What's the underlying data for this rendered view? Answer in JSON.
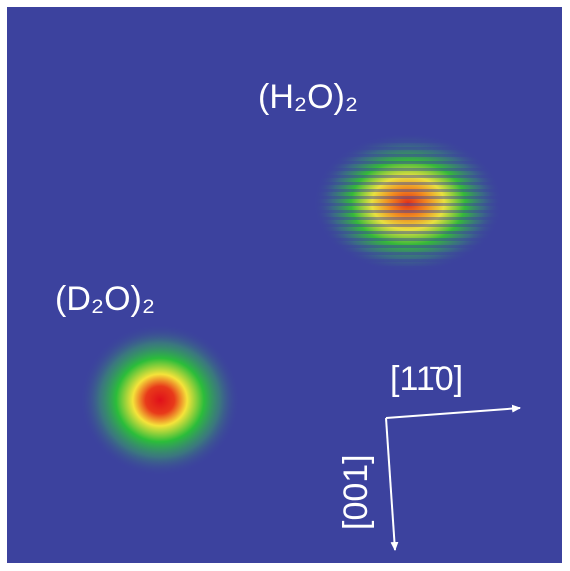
{
  "labels": {
    "h2o_dimer": "(H₂O)₂",
    "d2o_dimer": "(D₂O)₂",
    "direction_horizontal": "[11̄0]",
    "direction_vertical": "[001]"
  }
}
